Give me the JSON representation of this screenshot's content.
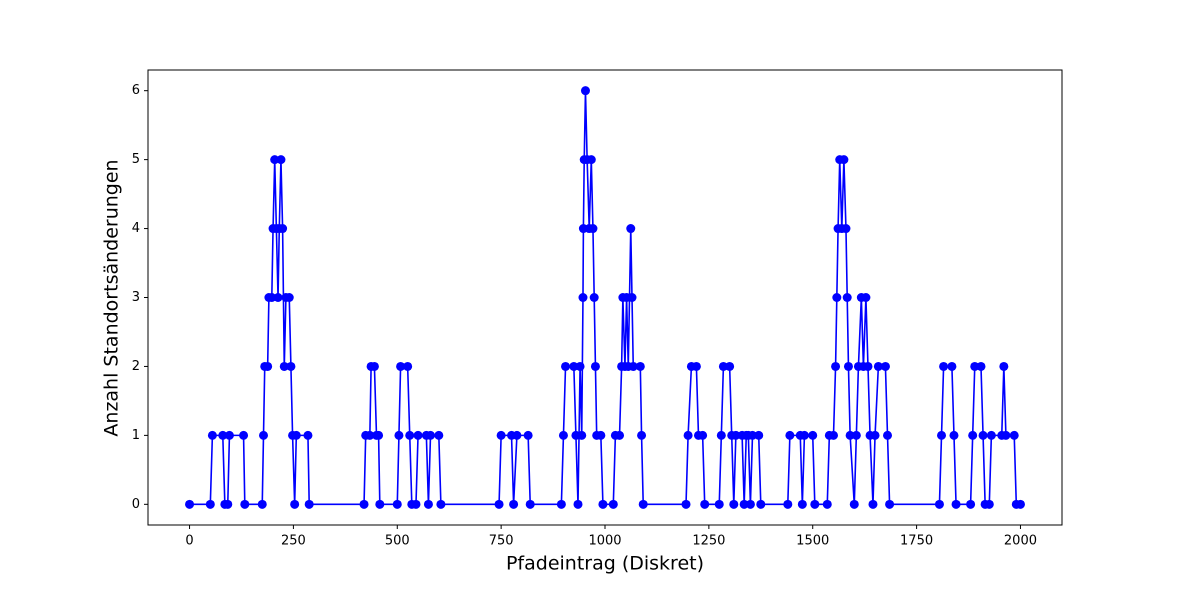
{
  "chart_data": {
    "type": "line",
    "x_label": "Pfadeintrag (Diskret)",
    "y_label": "Anzahl Standortsänderungen",
    "color": "#0000ff",
    "marker": "circle",
    "grid": false,
    "x": [
      0,
      50,
      55,
      80,
      85,
      92,
      96,
      130,
      133,
      175,
      178,
      181,
      188,
      191,
      198,
      201,
      205,
      209,
      213,
      216,
      220,
      224,
      228,
      232,
      240,
      244,
      248,
      253,
      257,
      285,
      288,
      420,
      424,
      434,
      437,
      445,
      450,
      455,
      458,
      500,
      504,
      508,
      525,
      530,
      535,
      545,
      550,
      570,
      575,
      580,
      600,
      605,
      745,
      750,
      775,
      780,
      788,
      815,
      820,
      895,
      900,
      905,
      925,
      930,
      935,
      940,
      944,
      947,
      948,
      950,
      953,
      957,
      962,
      967,
      971,
      974,
      977,
      980,
      990,
      995,
      1020,
      1025,
      1035,
      1040,
      1043,
      1048,
      1052,
      1056,
      1062,
      1065,
      1068,
      1085,
      1088,
      1092,
      1195,
      1200,
      1208,
      1220,
      1225,
      1235,
      1240,
      1275,
      1280,
      1285,
      1300,
      1305,
      1310,
      1315,
      1330,
      1335,
      1340,
      1345,
      1350,
      1355,
      1370,
      1375,
      1440,
      1445,
      1470,
      1475,
      1480,
      1500,
      1505,
      1535,
      1540,
      1550,
      1555,
      1558,
      1561,
      1565,
      1570,
      1575,
      1580,
      1583,
      1586,
      1590,
      1600,
      1605,
      1610,
      1617,
      1622,
      1628,
      1633,
      1638,
      1645,
      1650,
      1658,
      1675,
      1680,
      1685,
      1805,
      1810,
      1815,
      1835,
      1840,
      1845,
      1880,
      1885,
      1890,
      1905,
      1910,
      1915,
      1925,
      1930,
      1955,
      1960,
      1965,
      1985,
      1990,
      2000
    ],
    "values": [
      0,
      0,
      1,
      1,
      0,
      0,
      1,
      1,
      0,
      0,
      1,
      2,
      2,
      3,
      3,
      4,
      5,
      4,
      3,
      4,
      5,
      4,
      2,
      3,
      3,
      2,
      1,
      0,
      1,
      1,
      0,
      0,
      1,
      1,
      2,
      2,
      1,
      1,
      0,
      0,
      1,
      2,
      2,
      1,
      0,
      0,
      1,
      1,
      0,
      1,
      1,
      0,
      0,
      1,
      1,
      0,
      1,
      1,
      0,
      0,
      1,
      2,
      2,
      1,
      0,
      2,
      1,
      3,
      4,
      5,
      6,
      5,
      4,
      5,
      4,
      3,
      2,
      1,
      1,
      0,
      0,
      1,
      1,
      2,
      3,
      2,
      3,
      2,
      4,
      3,
      2,
      2,
      1,
      0,
      0,
      1,
      2,
      2,
      1,
      1,
      0,
      0,
      1,
      2,
      2,
      1,
      0,
      1,
      1,
      0,
      1,
      1,
      0,
      1,
      1,
      0,
      0,
      1,
      1,
      0,
      1,
      1,
      0,
      0,
      1,
      1,
      2,
      3,
      4,
      5,
      4,
      5,
      4,
      3,
      2,
      1,
      0,
      1,
      2,
      3,
      2,
      3,
      2,
      1,
      0,
      1,
      2,
      2,
      1,
      0,
      0,
      1,
      2,
      2,
      1,
      0,
      0,
      1,
      2,
      2,
      1,
      0,
      0,
      1,
      1,
      2,
      1,
      1,
      0,
      0
    ],
    "xlim": [
      -100,
      2100
    ],
    "ylim": [
      -0.3,
      6.3
    ],
    "xticks": [
      0,
      250,
      500,
      750,
      1000,
      1250,
      1500,
      1750,
      2000
    ],
    "yticks": [
      0,
      1,
      2,
      3,
      4,
      5,
      6
    ]
  }
}
